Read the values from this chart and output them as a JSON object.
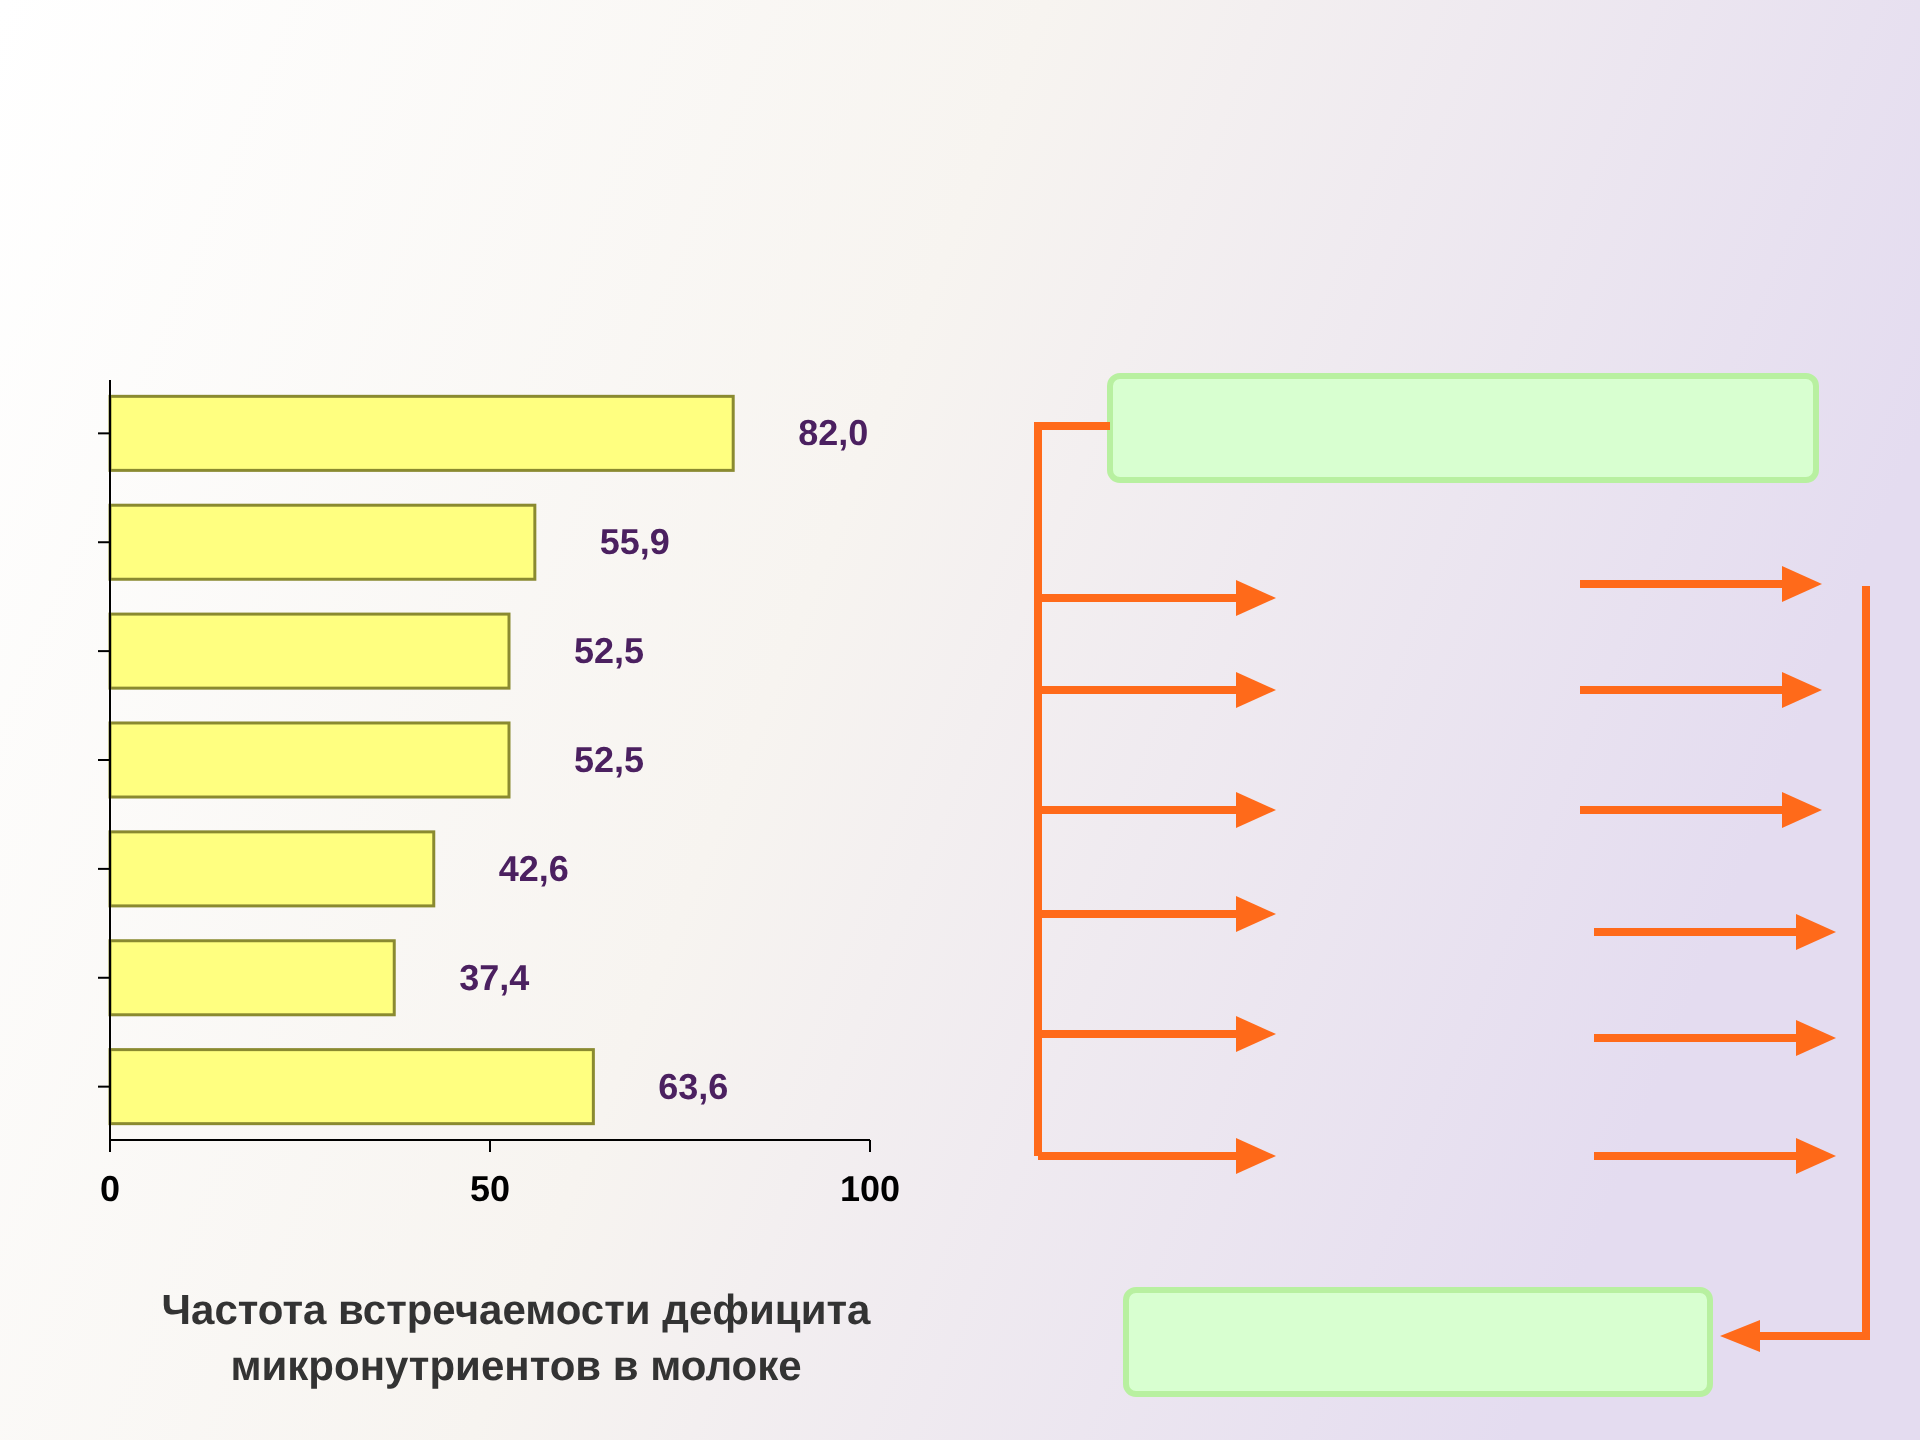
{
  "chart_data": {
    "type": "bar",
    "orientation": "horizontal",
    "xlabel": "Частота встречаемости дефицита микронутриентов в молоке",
    "categories": [
      null,
      null,
      null,
      null,
      null,
      null,
      null
    ],
    "values": [
      82.0,
      55.9,
      52.5,
      52.5,
      42.6,
      37.4,
      63.6
    ],
    "value_labels": [
      "82,0",
      "55,9",
      "52,5",
      "52,5",
      "42,6",
      "37,4",
      "63,6"
    ],
    "color": "#ffff80",
    "xlim": [
      0,
      100
    ],
    "xticks": [
      0,
      50,
      100
    ],
    "grid": false
  }
}
